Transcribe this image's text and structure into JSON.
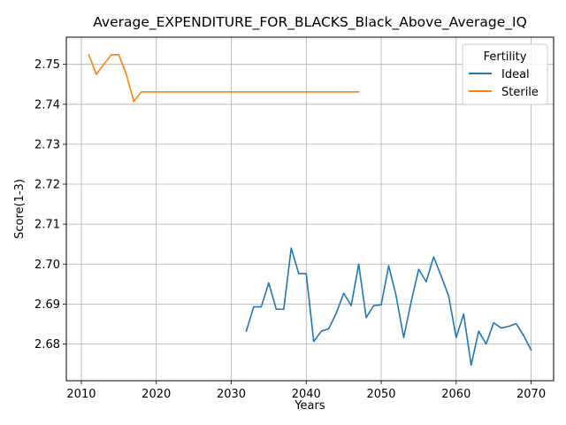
{
  "chart_data": {
    "type": "line",
    "title": "Average_EXPENDITURE_FOR_BLACKS_Black_Above_Average_IQ",
    "xlabel": "Years",
    "ylabel": "Score(1-3)",
    "xlim": [
      2008,
      2073
    ],
    "ylim": [
      2.6708,
      2.7568
    ],
    "xticks": [
      2010,
      2020,
      2030,
      2040,
      2050,
      2060,
      2070
    ],
    "yticks": [
      2.68,
      2.69,
      2.7,
      2.71,
      2.72,
      2.73,
      2.74,
      2.75
    ],
    "xtick_labels": [
      "2010",
      "2020",
      "2030",
      "2040",
      "2050",
      "2060",
      "2070"
    ],
    "ytick_labels": [
      "2.68",
      "2.69",
      "2.70",
      "2.71",
      "2.72",
      "2.73",
      "2.74",
      "2.75"
    ],
    "grid": true,
    "legend": {
      "title": "Fertility",
      "position": "top-right"
    },
    "series": [
      {
        "name": "Ideal",
        "color": "#1f77b4",
        "x": [
          2032,
          2033,
          2034,
          2035,
          2036,
          2037,
          2038,
          2039,
          2040,
          2041,
          2042,
          2043,
          2044,
          2045,
          2046,
          2047,
          2048,
          2049,
          2050,
          2051,
          2052,
          2053,
          2054,
          2055,
          2056,
          2057,
          2058,
          2059,
          2060,
          2061,
          2062,
          2063,
          2064,
          2065,
          2066,
          2067,
          2068,
          2069,
          2070
        ],
        "y": [
          2.6832,
          2.6893,
          2.6893,
          2.6953,
          2.6887,
          2.6887,
          2.704,
          2.6976,
          2.6976,
          2.6806,
          2.6832,
          2.6838,
          2.6877,
          2.6927,
          2.6896,
          2.7,
          2.6866,
          2.6896,
          2.6898,
          2.6996,
          2.692,
          2.6816,
          2.6906,
          2.6987,
          2.6956,
          2.7018,
          2.697,
          2.692,
          2.6816,
          2.6875,
          2.6747,
          2.6832,
          2.68,
          2.6853,
          2.684,
          2.6844,
          2.6851,
          2.6821,
          2.6785
        ]
      },
      {
        "name": "Sterile",
        "color": "#ff7f0e",
        "x": [
          2011,
          2012,
          2013,
          2014,
          2015,
          2016,
          2017,
          2018,
          2019,
          2020,
          2025,
          2030,
          2035,
          2040,
          2045,
          2047
        ],
        "y": [
          2.7524,
          2.7475,
          2.75,
          2.7524,
          2.7524,
          2.7475,
          2.7407,
          2.7431,
          2.7431,
          2.7431,
          2.7431,
          2.7431,
          2.7431,
          2.7431,
          2.7431,
          2.7431
        ]
      }
    ]
  }
}
